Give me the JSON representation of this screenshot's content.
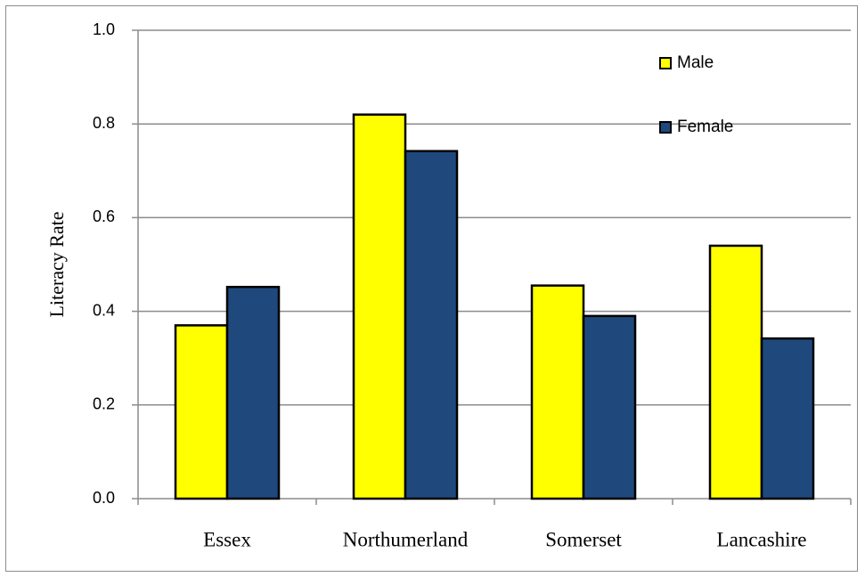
{
  "chart_data": {
    "type": "bar",
    "categories": [
      "Essex",
      "Northumerland",
      "Somerset",
      "Lancashire"
    ],
    "series": [
      {
        "name": "Male",
        "color": "#ffff00",
        "values": [
          0.37,
          0.82,
          0.455,
          0.54
        ]
      },
      {
        "name": "Female",
        "color": "#1f497d",
        "values": [
          0.452,
          0.742,
          0.39,
          0.342
        ]
      }
    ],
    "title": "",
    "xlabel": "",
    "ylabel": "Literacy Rate",
    "ylim": [
      0,
      1.0
    ],
    "yticks": [
      "0.0",
      "0.2",
      "0.4",
      "0.6",
      "0.8",
      "1.0"
    ],
    "ytick_values": [
      0,
      0.2,
      0.4,
      0.6,
      0.8,
      1.0
    ],
    "grid": true,
    "legend_position": "top-right"
  }
}
